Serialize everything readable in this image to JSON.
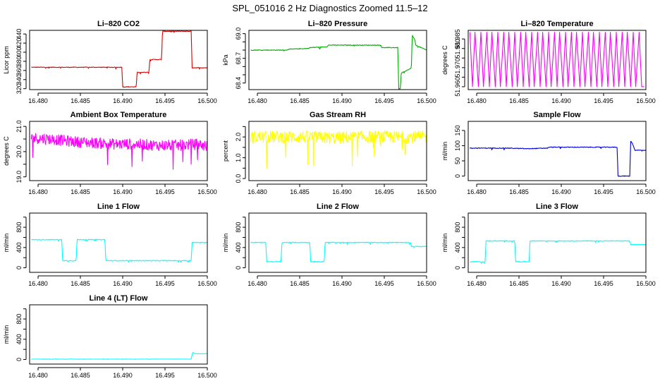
{
  "figure": {
    "title": "SPL_051016  2 Hz Diagnostics Zoomed 11.5–12"
  },
  "chart_data": [
    {
      "type": "line",
      "title": "Li–820 CO2",
      "ylabel": "Licor ppm",
      "color": "#dd0000",
      "xlim": [
        16.479,
        16.5
      ],
      "ylim": [
        318,
        448
      ],
      "xticks": [
        16.48,
        16.485,
        16.49,
        16.495,
        16.5
      ],
      "xtick_labels": [
        "16.480",
        "16.485",
        "16.490",
        "16.495",
        "16.500"
      ],
      "yticks": [
        320,
        340,
        360,
        380,
        400,
        420,
        440
      ],
      "ytick_labels": [
        "320",
        "340",
        "360",
        "380",
        "400",
        "420",
        "440"
      ],
      "noise": 0.7,
      "series": [
        {
          "x": [
            16.4792,
            16.4899,
            16.49,
            16.4916,
            16.4917,
            16.4931,
            16.4932,
            16.4946,
            16.4947,
            16.4981,
            16.4982,
            16.5
          ],
          "y": [
            367,
            367,
            324,
            324,
            356,
            356,
            384,
            384,
            446,
            446,
            366,
            366
          ]
        }
      ]
    },
    {
      "type": "line",
      "title": "Li–820 Pressure",
      "ylabel": "kPa",
      "color": "#00aa00",
      "xlim": [
        16.479,
        16.5
      ],
      "ylim": [
        68.32,
        69.04
      ],
      "xticks": [
        16.48,
        16.485,
        16.49,
        16.495,
        16.5
      ],
      "xtick_labels": [
        "16.480",
        "16.485",
        "16.490",
        "16.495",
        "16.500"
      ],
      "yticks": [
        68.4,
        68.5,
        68.6,
        68.7,
        68.8,
        68.9,
        69.0
      ],
      "ytick_labels": [
        "68.4",
        "",
        "",
        "68.7",
        "",
        "",
        "69.0"
      ],
      "noise": 0.004,
      "series": [
        {
          "x": [
            16.4792,
            16.4835,
            16.4836,
            16.486,
            16.4862,
            16.4882,
            16.4884,
            16.4946,
            16.4947,
            16.4966,
            16.4967,
            16.4969,
            16.497,
            16.4982,
            16.4983,
            16.4986,
            16.4987,
            16.5
          ],
          "y": [
            68.8,
            68.8,
            68.81,
            68.82,
            68.83,
            68.84,
            68.86,
            68.86,
            68.83,
            68.83,
            68.33,
            68.33,
            68.52,
            68.58,
            68.98,
            68.93,
            68.86,
            68.8
          ]
        }
      ]
    },
    {
      "type": "line",
      "title": "Li–820 Temperature",
      "ylabel": "degrees C",
      "color": "#ff00ff",
      "xlim": [
        16.479,
        16.5
      ],
      "ylim": [
        51.9585,
        51.9895
      ],
      "xticks": [
        16.48,
        16.485,
        16.49,
        16.495,
        16.5
      ],
      "xtick_labels": [
        "16.480",
        "16.485",
        "16.490",
        "16.495",
        "16.500"
      ],
      "yticks": [
        51.96,
        51.965,
        51.97,
        51.975,
        51.98,
        51.985
      ],
      "ytick_labels": [
        "51.960",
        "",
        "51.970",
        "",
        "51.980",
        "51.985"
      ],
      "noise": 0,
      "series": [
        {
          "x": [
            16.4792,
            16.4795,
            16.4798,
            16.4802,
            16.4805,
            16.4808,
            16.4812,
            16.4815,
            16.4818,
            16.4822,
            16.4825,
            16.4828,
            16.4832,
            16.4835,
            16.4838,
            16.4842,
            16.4845,
            16.4848,
            16.4852,
            16.4855,
            16.4858,
            16.4862,
            16.4865,
            16.4868,
            16.4872,
            16.4875,
            16.4878,
            16.4882,
            16.4885,
            16.4888,
            16.4892,
            16.4895,
            16.4898,
            16.4902,
            16.4905,
            16.4908,
            16.4912,
            16.4915,
            16.4918,
            16.4922,
            16.4925,
            16.4928,
            16.4932,
            16.4935,
            16.4938,
            16.4942,
            16.4945,
            16.4948,
            16.4952,
            16.4955,
            16.4958,
            16.4962,
            16.4965,
            16.4968,
            16.4972,
            16.4975,
            16.4978,
            16.4982,
            16.4985,
            16.4988,
            16.4992,
            16.4995,
            16.4998
          ],
          "y": [
            51.9885,
            51.96,
            51.9885,
            51.96,
            51.9885,
            51.96,
            51.9885,
            51.96,
            51.9885,
            51.96,
            51.9885,
            51.96,
            51.9885,
            51.96,
            51.9885,
            51.96,
            51.9885,
            51.96,
            51.9885,
            51.96,
            51.9885,
            51.96,
            51.9885,
            51.96,
            51.9885,
            51.96,
            51.9885,
            51.96,
            51.9885,
            51.96,
            51.9885,
            51.96,
            51.9885,
            51.96,
            51.9885,
            51.96,
            51.9885,
            51.96,
            51.9885,
            51.96,
            51.9885,
            51.96,
            51.9885,
            51.96,
            51.9885,
            51.96,
            51.9885,
            51.96,
            51.9885,
            51.96,
            51.9885,
            51.96,
            51.9885,
            51.96,
            51.9885,
            51.96,
            51.9885,
            51.96,
            51.9885,
            51.96,
            51.9885,
            51.96,
            51.96
          ]
        }
      ]
    },
    {
      "type": "line",
      "title": "Ambient Box Temperature",
      "ylabel": "degrees C",
      "color": "#ff00ff",
      "xlim": [
        16.479,
        16.5
      ],
      "ylim": [
        18.85,
        21.2
      ],
      "xticks": [
        16.48,
        16.485,
        16.49,
        16.495,
        16.5
      ],
      "xtick_labels": [
        "16.480",
        "16.485",
        "16.490",
        "16.495",
        "16.500"
      ],
      "yticks": [
        19.0,
        19.5,
        20.0,
        20.5,
        21.0
      ],
      "ytick_labels": [
        "19.0",
        "",
        "20.0",
        "",
        "21.0"
      ],
      "noise": 0.22,
      "series": [
        {
          "x": [
            16.4792,
            16.4815,
            16.484,
            16.4865,
            16.489,
            16.4915,
            16.494,
            16.4965,
            16.499,
            16.5
          ],
          "y": [
            20.55,
            20.5,
            20.4,
            20.35,
            20.3,
            20.3,
            20.25,
            20.25,
            20.3,
            20.2
          ]
        }
      ]
    },
    {
      "type": "line",
      "title": "Gas Stream RH",
      "ylabel": "percent",
      "color": "#ffff00",
      "xlim": [
        16.479,
        16.5
      ],
      "ylim": [
        -0.1,
        2.75
      ],
      "xticks": [
        16.48,
        16.485,
        16.49,
        16.495,
        16.5
      ],
      "xtick_labels": [
        "16.480",
        "16.485",
        "16.490",
        "16.495",
        "16.500"
      ],
      "yticks": [
        0.0,
        0.5,
        1.0,
        1.5,
        2.0,
        2.5
      ],
      "ytick_labels": [
        "0.0",
        "",
        "1.0",
        "",
        "2.0",
        ""
      ],
      "noise": 0.3,
      "series": [
        {
          "x": [
            16.4792,
            16.4815,
            16.484,
            16.4865,
            16.489,
            16.4915,
            16.494,
            16.4965,
            16.499,
            16.5
          ],
          "y": [
            2.0,
            2.0,
            2.0,
            2.0,
            1.95,
            2.0,
            2.0,
            2.0,
            2.0,
            2.0
          ]
        }
      ]
    },
    {
      "type": "line",
      "title": "Sample Flow",
      "ylabel": "ml/min",
      "color": "#0000cc",
      "xlim": [
        16.479,
        16.5
      ],
      "ylim": [
        -15,
        180
      ],
      "xticks": [
        16.48,
        16.485,
        16.49,
        16.495,
        16.5
      ],
      "xtick_labels": [
        "16.480",
        "16.485",
        "16.490",
        "16.495",
        "16.500"
      ],
      "yticks": [
        0,
        50,
        100,
        150
      ],
      "ytick_labels": [
        "0",
        "50",
        "100",
        "150"
      ],
      "noise": 1.1,
      "series": [
        {
          "x": [
            16.4792,
            16.4835,
            16.486,
            16.4884,
            16.4885,
            16.4966,
            16.4967,
            16.4981,
            16.4982,
            16.4984,
            16.4987,
            16.5
          ],
          "y": [
            92,
            92,
            90,
            92,
            95,
            95,
            0,
            0,
            115,
            108,
            85,
            85
          ]
        }
      ]
    },
    {
      "type": "line",
      "title": "Line 1 Flow",
      "ylabel": "ml/min",
      "color": "#00ffff",
      "xlim": [
        16.479,
        16.5
      ],
      "ylim": [
        -90,
        1080
      ],
      "xticks": [
        16.48,
        16.485,
        16.49,
        16.495,
        16.5
      ],
      "xtick_labels": [
        "16.480",
        "16.485",
        "16.490",
        "16.495",
        "16.500"
      ],
      "yticks": [
        0,
        200,
        400,
        600,
        800,
        1000
      ],
      "ytick_labels": [
        "0",
        "",
        "400",
        "",
        "800",
        ""
      ],
      "noise": 7,
      "series": [
        {
          "x": [
            16.4792,
            16.4828,
            16.4829,
            16.4845,
            16.4846,
            16.4879,
            16.488,
            16.4981,
            16.4982,
            16.5
          ],
          "y": [
            555,
            555,
            140,
            140,
            555,
            555,
            140,
            140,
            500,
            500
          ]
        }
      ]
    },
    {
      "type": "line",
      "title": "Line 2 Flow",
      "ylabel": "ml/min",
      "color": "#00ffff",
      "xlim": [
        16.479,
        16.5
      ],
      "ylim": [
        -90,
        1080
      ],
      "xticks": [
        16.48,
        16.485,
        16.49,
        16.495,
        16.5
      ],
      "xtick_labels": [
        "16.480",
        "16.485",
        "16.490",
        "16.495",
        "16.500"
      ],
      "yticks": [
        0,
        200,
        400,
        600,
        800,
        1000
      ],
      "ytick_labels": [
        "0",
        "",
        "400",
        "",
        "800",
        ""
      ],
      "noise": 7,
      "series": [
        {
          "x": [
            16.4792,
            16.481,
            16.4811,
            16.4828,
            16.4829,
            16.4862,
            16.4863,
            16.4879,
            16.488,
            16.4981,
            16.4982,
            16.5
          ],
          "y": [
            500,
            500,
            120,
            120,
            500,
            500,
            120,
            120,
            500,
            500,
            420,
            420
          ]
        }
      ]
    },
    {
      "type": "line",
      "title": "Line 3 Flow",
      "ylabel": "ml/min",
      "color": "#00ffff",
      "xlim": [
        16.479,
        16.5
      ],
      "ylim": [
        -90,
        1080
      ],
      "xticks": [
        16.48,
        16.485,
        16.49,
        16.495,
        16.5
      ],
      "xtick_labels": [
        "16.480",
        "16.485",
        "16.490",
        "16.495",
        "16.500"
      ],
      "yticks": [
        0,
        200,
        400,
        600,
        800,
        1000
      ],
      "ytick_labels": [
        "0",
        "",
        "400",
        "",
        "800",
        ""
      ],
      "noise": 7,
      "series": [
        {
          "x": [
            16.4792,
            16.481,
            16.4811,
            16.4845,
            16.4846,
            16.4862,
            16.4863,
            16.4981,
            16.4982,
            16.5
          ],
          "y": [
            120,
            120,
            530,
            530,
            120,
            120,
            530,
            530,
            460,
            460
          ]
        }
      ]
    },
    {
      "type": "line",
      "title": "Line 4 (LT) Flow",
      "ylabel": "ml/min",
      "color": "#00ffff",
      "xlim": [
        16.479,
        16.5
      ],
      "ylim": [
        -90,
        1080
      ],
      "xticks": [
        16.48,
        16.485,
        16.49,
        16.495,
        16.5
      ],
      "xtick_labels": [
        "16.480",
        "16.485",
        "16.490",
        "16.495",
        "16.500"
      ],
      "yticks": [
        0,
        200,
        400,
        600,
        800,
        1000
      ],
      "ytick_labels": [
        "0",
        "",
        "400",
        "",
        "800",
        ""
      ],
      "noise": 2,
      "series": [
        {
          "x": [
            16.4792,
            16.4981,
            16.4982,
            16.4983,
            16.4985,
            16.5
          ],
          "y": [
            8,
            8,
            95,
            145,
            115,
            115
          ]
        }
      ]
    }
  ]
}
